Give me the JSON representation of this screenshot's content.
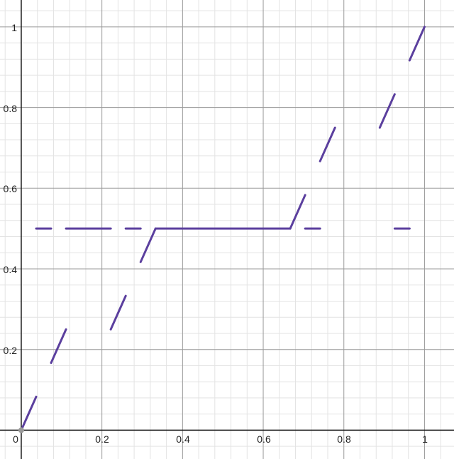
{
  "chart_data": {
    "type": "line",
    "title": "",
    "xlabel": "",
    "ylabel": "",
    "xlim": [
      -0.0527,
      1.0731
    ],
    "ylim": [
      -0.0714,
      1.0666
    ],
    "grid": true,
    "x_ticks": [
      "0",
      "0.2",
      "0.4",
      "0.6",
      "0.8",
      "1"
    ],
    "y_ticks": [
      "0.2",
      "0.4",
      "0.6",
      "0.8",
      "1"
    ],
    "series": [
      {
        "color": "#5b3f9e",
        "segments": [
          [
            [
              0,
              0
            ],
            [
              0.037,
              0.083
            ]
          ],
          [
            [
              0.074,
              0.167
            ],
            [
              0.111,
              0.25
            ]
          ],
          [
            [
              0.222,
              0.25
            ],
            [
              0.259,
              0.333
            ]
          ],
          [
            [
              0.296,
              0.417
            ],
            [
              0.333,
              0.5
            ]
          ],
          [
            [
              0.333,
              0.5
            ],
            [
              0.667,
              0.5
            ]
          ],
          [
            [
              0.667,
              0.5
            ],
            [
              0.704,
              0.583
            ]
          ],
          [
            [
              0.741,
              0.667
            ],
            [
              0.778,
              0.75
            ]
          ],
          [
            [
              0.889,
              0.75
            ],
            [
              0.926,
              0.833
            ]
          ],
          [
            [
              0.963,
              0.917
            ],
            [
              1.0,
              1.0
            ]
          ],
          [
            [
              0.037,
              0.5
            ],
            [
              0.074,
              0.5
            ]
          ],
          [
            [
              0.111,
              0.5
            ],
            [
              0.222,
              0.5
            ]
          ],
          [
            [
              0.259,
              0.5
            ],
            [
              0.296,
              0.5
            ]
          ],
          [
            [
              0.704,
              0.5
            ],
            [
              0.741,
              0.5
            ]
          ],
          [
            [
              0.926,
              0.5
            ],
            [
              0.963,
              0.5
            ]
          ]
        ]
      }
    ],
    "points": [
      {
        "x": 0,
        "y": 0,
        "color": "#999999"
      }
    ]
  }
}
